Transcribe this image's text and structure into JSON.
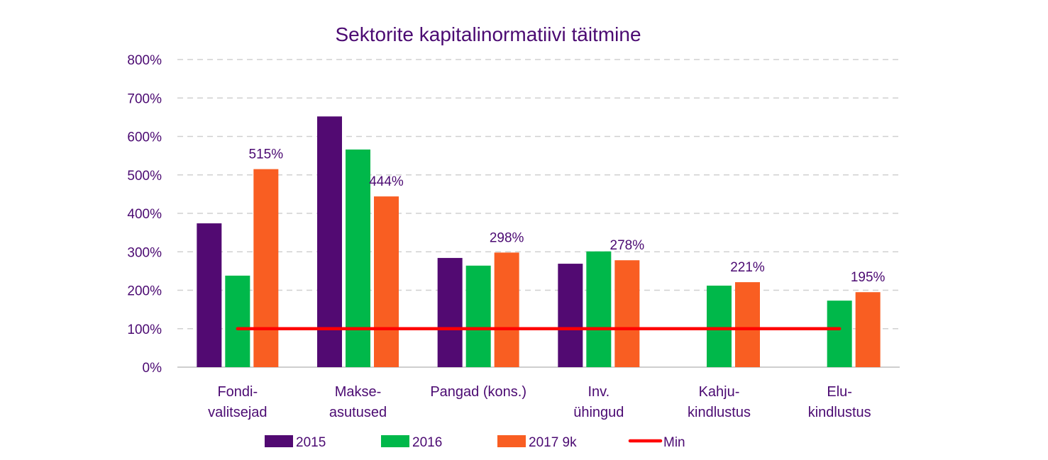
{
  "chart_data": {
    "type": "bar",
    "title": "Sektorite kapitalinormatiivi täitmine",
    "xlabel": "",
    "ylabel": "",
    "ylim": [
      0,
      800
    ],
    "yticks": [
      "0%",
      "100%",
      "200%",
      "300%",
      "400%",
      "500%",
      "600%",
      "700%",
      "800%"
    ],
    "ytick_values": [
      0,
      100,
      200,
      300,
      400,
      500,
      600,
      700,
      800
    ],
    "grid": true,
    "categories": [
      [
        "Fondi-",
        "valitsejad"
      ],
      [
        "Makse-",
        "asutused"
      ],
      [
        "Pangad (kons.)"
      ],
      [
        "Inv.",
        "ühingud"
      ],
      [
        "Kahju-",
        "kindlustus"
      ],
      [
        "Elu-",
        "kindlustus"
      ]
    ],
    "series": [
      {
        "name": "2015",
        "color": "#520a72",
        "values": [
          374,
          652,
          284,
          269,
          null,
          null
        ]
      },
      {
        "name": "2016",
        "color": "#00b84a",
        "values": [
          238,
          566,
          264,
          301,
          212,
          173
        ]
      },
      {
        "name": "2017 9k",
        "color": "#f95e22",
        "values": [
          515,
          444,
          298,
          278,
          221,
          195
        ],
        "data_labels": [
          "515%",
          "444%",
          "298%",
          "278%",
          "221%",
          "195%"
        ]
      }
    ],
    "line_series": {
      "name": "Min",
      "color": "#ff0000",
      "value": 100
    },
    "legend": [
      "2015",
      "2016",
      "2017 9k",
      "Min"
    ],
    "legend_position": "bottom"
  }
}
